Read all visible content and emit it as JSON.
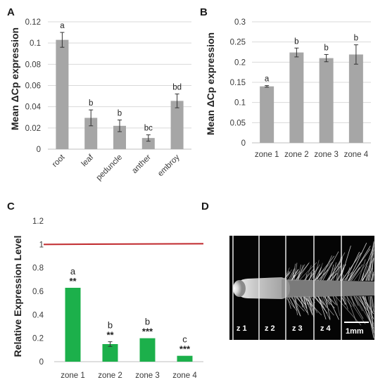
{
  "panels": {
    "a": "A",
    "b": "B",
    "c": "C",
    "d": "D"
  },
  "colors": {
    "bar_gray": "#a6a6a6",
    "bar_green": "#1cb04b",
    "reference_line": "#c0282c",
    "grid": "#d9d9d9"
  },
  "chart_data": [
    {
      "id": "A",
      "type": "bar",
      "ylabel": "Mean ΔCp expression",
      "categories": [
        "root",
        "leaf",
        "peduncle",
        "anther",
        "embroy"
      ],
      "values": [
        0.103,
        0.0295,
        0.022,
        0.0105,
        0.0455
      ],
      "errors": [
        0.007,
        0.0075,
        0.0055,
        0.003,
        0.0065
      ],
      "letters": [
        "a",
        "b",
        "b",
        "bc",
        "bd"
      ],
      "ylim": [
        0,
        0.12
      ],
      "yticks": [
        "0",
        "0.02",
        "0.04",
        "0.06",
        "0.08",
        "0.1",
        "0.12"
      ],
      "grid": true,
      "xtick_rotation": "45deg"
    },
    {
      "id": "B",
      "type": "bar",
      "ylabel": "Mean ΔCp expression",
      "categories": [
        "zone 1",
        "zone 2",
        "zone 3",
        "zone 4"
      ],
      "values": [
        0.14,
        0.224,
        0.21,
        0.219
      ],
      "errors": [
        0.002,
        0.011,
        0.009,
        0.024
      ],
      "letters": [
        "a",
        "b",
        "b",
        "b"
      ],
      "ylim": [
        0,
        0.3
      ],
      "yticks": [
        "0",
        "0.05",
        "0.1",
        "0.15",
        "0.2",
        "0.25",
        "0.3"
      ],
      "grid": true
    },
    {
      "id": "C",
      "type": "bar",
      "ylabel": "Relative Expression Level",
      "categories": [
        "zone 1",
        "zone 2",
        "zone 3",
        "zone 4"
      ],
      "values": [
        0.63,
        0.15,
        0.2,
        0.05
      ],
      "errors": [
        0.0,
        0.02,
        0.0,
        0.0
      ],
      "letters": [
        "a",
        "b",
        "b",
        "c"
      ],
      "significance": [
        "**",
        "**",
        "***",
        "***"
      ],
      "reference_value": 1.0,
      "ylim": [
        0,
        1.2
      ],
      "yticks": [
        "0",
        "0.2",
        "0.4",
        "0.6",
        "0.8",
        "1",
        "1.2"
      ],
      "grid": false
    }
  ],
  "micrograph": {
    "zones": [
      "z 1",
      "z 2",
      "z 3",
      "z 4"
    ],
    "scale_bar": "1mm"
  }
}
